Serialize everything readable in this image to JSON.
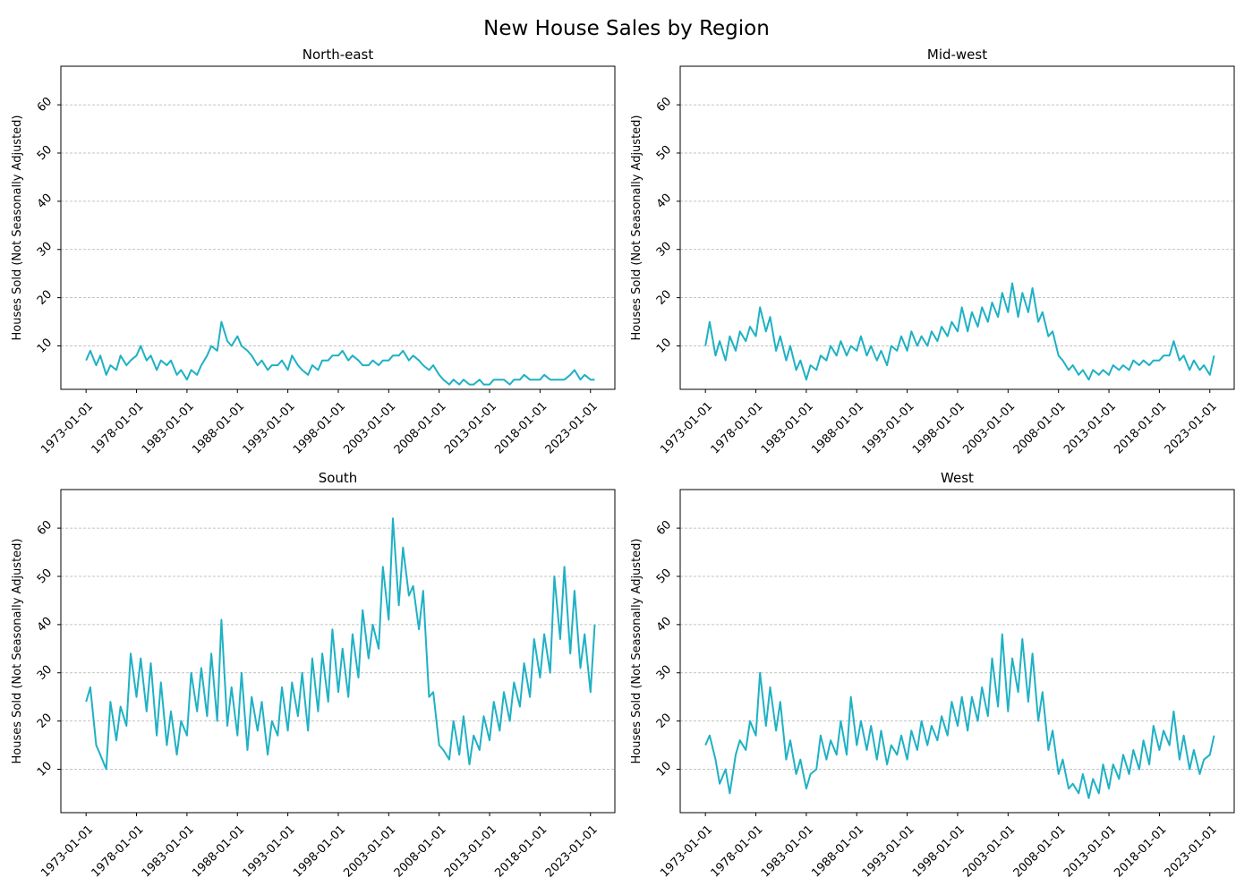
{
  "figure": {
    "title": "New House Sales by Region"
  },
  "ylabel": "Houses Sold (Not Seasonally Adjusted)",
  "line_color": "#1fb1c4",
  "grid_color": "#b0b0b0",
  "chart_data": [
    {
      "type": "line",
      "title": "North-east",
      "ylabel": "Houses Sold (Not Seasonally Adjusted)",
      "xlim": [
        "1970-07-01",
        "2025-06-01"
      ],
      "ylim": [
        1,
        68
      ],
      "yticks": [
        10,
        20,
        30,
        40,
        50,
        60
      ],
      "xticks": [
        "1973-01-01",
        "1978-01-01",
        "1983-01-01",
        "1988-01-01",
        "1993-01-01",
        "1998-01-01",
        "2003-01-01",
        "2008-01-01",
        "2013-01-01",
        "2018-01-01",
        "2023-01-01"
      ],
      "grid": "y",
      "series": [
        {
          "x": [
            "1973-01",
            "1973-06",
            "1974-01",
            "1974-06",
            "1975-01",
            "1975-06",
            "1976-01",
            "1976-06",
            "1977-01",
            "1977-06",
            "1978-01",
            "1978-06",
            "1979-01",
            "1979-06",
            "1980-01",
            "1980-06",
            "1981-01",
            "1981-06",
            "1982-01",
            "1982-06",
            "1983-01",
            "1983-06",
            "1984-01",
            "1984-06",
            "1985-01",
            "1985-06",
            "1986-01",
            "1986-06",
            "1987-01",
            "1987-06",
            "1988-01",
            "1988-06",
            "1989-01",
            "1989-06",
            "1990-01",
            "1990-06",
            "1991-01",
            "1991-06",
            "1992-01",
            "1992-06",
            "1993-01",
            "1993-06",
            "1994-01",
            "1994-06",
            "1995-01",
            "1995-06",
            "1996-01",
            "1996-06",
            "1997-01",
            "1997-06",
            "1998-01",
            "1998-06",
            "1999-01",
            "1999-06",
            "2000-01",
            "2000-06",
            "2001-01",
            "2001-06",
            "2002-01",
            "2002-06",
            "2003-01",
            "2003-06",
            "2004-01",
            "2004-06",
            "2005-01",
            "2005-06",
            "2006-01",
            "2006-06",
            "2007-01",
            "2007-06",
            "2008-01",
            "2008-06",
            "2009-01",
            "2009-06",
            "2010-01",
            "2010-06",
            "2011-01",
            "2011-06",
            "2012-01",
            "2012-06",
            "2013-01",
            "2013-06",
            "2014-01",
            "2014-06",
            "2015-01",
            "2015-06",
            "2016-01",
            "2016-06",
            "2017-01",
            "2017-06",
            "2018-01",
            "2018-06",
            "2019-01",
            "2019-06",
            "2020-01",
            "2020-06",
            "2021-01",
            "2021-06",
            "2022-01",
            "2022-06",
            "2023-01",
            "2023-06"
          ],
          "values": [
            7,
            9,
            6,
            8,
            4,
            6,
            5,
            8,
            6,
            7,
            8,
            10,
            7,
            8,
            5,
            7,
            6,
            7,
            4,
            5,
            3,
            5,
            4,
            6,
            8,
            10,
            9,
            15,
            11,
            10,
            12,
            10,
            9,
            8,
            6,
            7,
            5,
            6,
            6,
            7,
            5,
            8,
            6,
            5,
            4,
            6,
            5,
            7,
            7,
            8,
            8,
            9,
            7,
            8,
            7,
            6,
            6,
            7,
            6,
            7,
            7,
            8,
            8,
            9,
            7,
            8,
            7,
            6,
            5,
            6,
            4,
            3,
            2,
            3,
            2,
            3,
            2,
            2,
            3,
            2,
            2,
            3,
            3,
            3,
            2,
            3,
            3,
            4,
            3,
            3,
            3,
            4,
            3,
            3,
            3,
            3,
            4,
            5,
            3,
            4,
            3,
            3
          ]
        }
      ]
    },
    {
      "type": "line",
      "title": "Mid-west",
      "ylabel": "Houses Sold (Not Seasonally Adjusted)",
      "xlim": [
        "1970-07-01",
        "2025-06-01"
      ],
      "ylim": [
        1,
        68
      ],
      "yticks": [
        10,
        20,
        30,
        40,
        50,
        60
      ],
      "xticks": [
        "1973-01-01",
        "1978-01-01",
        "1983-01-01",
        "1988-01-01",
        "1993-01-01",
        "1998-01-01",
        "2003-01-01",
        "2008-01-01",
        "2013-01-01",
        "2018-01-01",
        "2023-01-01"
      ],
      "grid": "y",
      "series": [
        {
          "x": [
            "1973-01",
            "1973-06",
            "1974-01",
            "1974-06",
            "1975-01",
            "1975-06",
            "1976-01",
            "1976-06",
            "1977-01",
            "1977-06",
            "1978-01",
            "1978-06",
            "1979-01",
            "1979-06",
            "1980-01",
            "1980-06",
            "1981-01",
            "1981-06",
            "1982-01",
            "1982-06",
            "1983-01",
            "1983-06",
            "1984-01",
            "1984-06",
            "1985-01",
            "1985-06",
            "1986-01",
            "1986-06",
            "1987-01",
            "1987-06",
            "1988-01",
            "1988-06",
            "1989-01",
            "1989-06",
            "1990-01",
            "1990-06",
            "1991-01",
            "1991-06",
            "1992-01",
            "1992-06",
            "1993-01",
            "1993-06",
            "1994-01",
            "1994-06",
            "1995-01",
            "1995-06",
            "1996-01",
            "1996-06",
            "1997-01",
            "1997-06",
            "1998-01",
            "1998-06",
            "1999-01",
            "1999-06",
            "2000-01",
            "2000-06",
            "2001-01",
            "2001-06",
            "2002-01",
            "2002-06",
            "2003-01",
            "2003-06",
            "2004-01",
            "2004-06",
            "2005-01",
            "2005-06",
            "2006-01",
            "2006-06",
            "2007-01",
            "2007-06",
            "2008-01",
            "2008-06",
            "2009-01",
            "2009-06",
            "2010-01",
            "2010-06",
            "2011-01",
            "2011-06",
            "2012-01",
            "2012-06",
            "2013-01",
            "2013-06",
            "2014-01",
            "2014-06",
            "2015-01",
            "2015-06",
            "2016-01",
            "2016-06",
            "2017-01",
            "2017-06",
            "2018-01",
            "2018-06",
            "2019-01",
            "2019-06",
            "2020-01",
            "2020-06",
            "2021-01",
            "2021-06",
            "2022-01",
            "2022-06",
            "2023-01",
            "2023-06"
          ],
          "values": [
            10,
            15,
            8,
            11,
            7,
            12,
            9,
            13,
            11,
            14,
            12,
            18,
            13,
            16,
            9,
            12,
            7,
            10,
            5,
            7,
            3,
            6,
            5,
            8,
            7,
            10,
            8,
            11,
            8,
            10,
            9,
            12,
            8,
            10,
            7,
            9,
            6,
            10,
            9,
            12,
            9,
            13,
            10,
            12,
            10,
            13,
            11,
            14,
            12,
            15,
            13,
            18,
            13,
            17,
            14,
            18,
            15,
            19,
            16,
            21,
            17,
            23,
            16,
            21,
            17,
            22,
            15,
            17,
            12,
            13,
            8,
            7,
            5,
            6,
            4,
            5,
            3,
            5,
            4,
            5,
            4,
            6,
            5,
            6,
            5,
            7,
            6,
            7,
            6,
            7,
            7,
            8,
            8,
            11,
            7,
            8,
            5,
            7,
            5,
            6,
            4,
            8
          ]
        }
      ]
    },
    {
      "type": "line",
      "title": "South",
      "ylabel": "Houses Sold (Not Seasonally Adjusted)",
      "xlim": [
        "1970-07-01",
        "2025-06-01"
      ],
      "ylim": [
        1,
        68
      ],
      "yticks": [
        10,
        20,
        30,
        40,
        50,
        60
      ],
      "xticks": [
        "1973-01-01",
        "1978-01-01",
        "1983-01-01",
        "1988-01-01",
        "1993-01-01",
        "1998-01-01",
        "2003-01-01",
        "2008-01-01",
        "2013-01-01",
        "2018-01-01",
        "2023-01-01"
      ],
      "grid": "y",
      "series": [
        {
          "x": [
            "1973-01",
            "1973-06",
            "1974-01",
            "1974-06",
            "1975-01",
            "1975-06",
            "1976-01",
            "1976-06",
            "1977-01",
            "1977-06",
            "1978-01",
            "1978-06",
            "1979-01",
            "1979-06",
            "1980-01",
            "1980-06",
            "1981-01",
            "1981-06",
            "1982-01",
            "1982-06",
            "1983-01",
            "1983-06",
            "1984-01",
            "1984-06",
            "1985-01",
            "1985-06",
            "1986-01",
            "1986-06",
            "1987-01",
            "1987-06",
            "1988-01",
            "1988-06",
            "1989-01",
            "1989-06",
            "1990-01",
            "1990-06",
            "1991-01",
            "1991-06",
            "1992-01",
            "1992-06",
            "1993-01",
            "1993-06",
            "1994-01",
            "1994-06",
            "1995-01",
            "1995-06",
            "1996-01",
            "1996-06",
            "1997-01",
            "1997-06",
            "1998-01",
            "1998-06",
            "1999-01",
            "1999-06",
            "2000-01",
            "2000-06",
            "2001-01",
            "2001-06",
            "2002-01",
            "2002-06",
            "2003-01",
            "2003-06",
            "2004-01",
            "2004-06",
            "2005-01",
            "2005-06",
            "2006-01",
            "2006-06",
            "2007-01",
            "2007-06",
            "2008-01",
            "2008-06",
            "2009-01",
            "2009-06",
            "2010-01",
            "2010-06",
            "2011-01",
            "2011-06",
            "2012-01",
            "2012-06",
            "2013-01",
            "2013-06",
            "2014-01",
            "2014-06",
            "2015-01",
            "2015-06",
            "2016-01",
            "2016-06",
            "2017-01",
            "2017-06",
            "2018-01",
            "2018-06",
            "2019-01",
            "2019-06",
            "2020-01",
            "2020-06",
            "2021-01",
            "2021-06",
            "2022-01",
            "2022-06",
            "2023-01",
            "2023-06"
          ],
          "values": [
            24,
            27,
            15,
            13,
            10,
            24,
            16,
            23,
            19,
            34,
            25,
            33,
            22,
            32,
            17,
            28,
            15,
            22,
            13,
            20,
            17,
            30,
            22,
            31,
            21,
            34,
            20,
            41,
            19,
            27,
            17,
            30,
            14,
            25,
            18,
            24,
            13,
            20,
            17,
            27,
            18,
            28,
            21,
            30,
            18,
            33,
            22,
            34,
            24,
            39,
            26,
            35,
            25,
            38,
            29,
            43,
            33,
            40,
            35,
            52,
            41,
            62,
            44,
            56,
            46,
            48,
            39,
            47,
            25,
            26,
            15,
            14,
            12,
            20,
            13,
            21,
            11,
            17,
            14,
            21,
            16,
            24,
            18,
            26,
            20,
            28,
            23,
            32,
            25,
            37,
            29,
            38,
            30,
            50,
            37,
            52,
            34,
            47,
            31,
            38,
            26,
            40
          ]
        }
      ]
    },
    {
      "type": "line",
      "title": "West",
      "ylabel": "Houses Sold (Not Seasonally Adjusted)",
      "xlim": [
        "1970-07-01",
        "2025-06-01"
      ],
      "ylim": [
        1,
        68
      ],
      "yticks": [
        10,
        20,
        30,
        40,
        50,
        60
      ],
      "xticks": [
        "1973-01-01",
        "1978-01-01",
        "1983-01-01",
        "1988-01-01",
        "1993-01-01",
        "1998-01-01",
        "2003-01-01",
        "2008-01-01",
        "2013-01-01",
        "2018-01-01",
        "2023-01-01"
      ],
      "grid": "y",
      "series": [
        {
          "x": [
            "1973-01",
            "1973-06",
            "1974-01",
            "1974-06",
            "1975-01",
            "1975-06",
            "1976-01",
            "1976-06",
            "1977-01",
            "1977-06",
            "1978-01",
            "1978-06",
            "1979-01",
            "1979-06",
            "1980-01",
            "1980-06",
            "1981-01",
            "1981-06",
            "1982-01",
            "1982-06",
            "1983-01",
            "1983-06",
            "1984-01",
            "1984-06",
            "1985-01",
            "1985-06",
            "1986-01",
            "1986-06",
            "1987-01",
            "1987-06",
            "1988-01",
            "1988-06",
            "1989-01",
            "1989-06",
            "1990-01",
            "1990-06",
            "1991-01",
            "1991-06",
            "1992-01",
            "1992-06",
            "1993-01",
            "1993-06",
            "1994-01",
            "1994-06",
            "1995-01",
            "1995-06",
            "1996-01",
            "1996-06",
            "1997-01",
            "1997-06",
            "1998-01",
            "1998-06",
            "1999-01",
            "1999-06",
            "2000-01",
            "2000-06",
            "2001-01",
            "2001-06",
            "2002-01",
            "2002-06",
            "2003-01",
            "2003-06",
            "2004-01",
            "2004-06",
            "2005-01",
            "2005-06",
            "2006-01",
            "2006-06",
            "2007-01",
            "2007-06",
            "2008-01",
            "2008-06",
            "2009-01",
            "2009-06",
            "2010-01",
            "2010-06",
            "2011-01",
            "2011-06",
            "2012-01",
            "2012-06",
            "2013-01",
            "2013-06",
            "2014-01",
            "2014-06",
            "2015-01",
            "2015-06",
            "2016-01",
            "2016-06",
            "2017-01",
            "2017-06",
            "2018-01",
            "2018-06",
            "2019-01",
            "2019-06",
            "2020-01",
            "2020-06",
            "2021-01",
            "2021-06",
            "2022-01",
            "2022-06",
            "2023-01",
            "2023-06"
          ],
          "values": [
            15,
            17,
            12,
            7,
            10,
            5,
            13,
            16,
            14,
            20,
            17,
            30,
            19,
            27,
            18,
            24,
            12,
            16,
            9,
            12,
            6,
            9,
            10,
            17,
            12,
            16,
            13,
            20,
            13,
            25,
            15,
            20,
            14,
            19,
            12,
            18,
            11,
            15,
            13,
            17,
            12,
            18,
            14,
            20,
            15,
            19,
            16,
            21,
            17,
            24,
            19,
            25,
            18,
            25,
            20,
            27,
            21,
            33,
            23,
            38,
            22,
            33,
            26,
            37,
            24,
            34,
            20,
            26,
            14,
            18,
            9,
            12,
            6,
            7,
            5,
            9,
            4,
            8,
            5,
            11,
            6,
            11,
            8,
            13,
            9,
            14,
            10,
            16,
            11,
            19,
            14,
            18,
            15,
            22,
            12,
            17,
            10,
            14,
            9,
            12,
            13,
            17
          ]
        }
      ]
    }
  ]
}
